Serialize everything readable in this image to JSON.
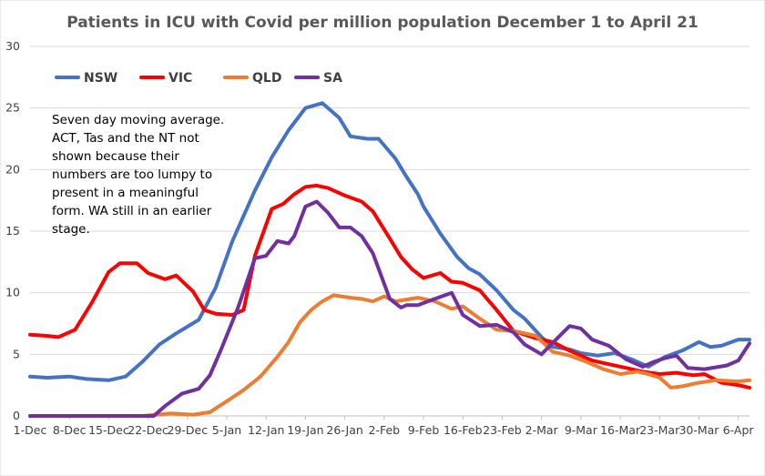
{
  "chart_data": {
    "type": "line",
    "title": "Patients in ICU with Covid per million population December 1  to April 21",
    "xlabel": "",
    "ylabel": "",
    "ylim": [
      0,
      30
    ],
    "yticks": [
      "0",
      "5",
      "10",
      "15",
      "20",
      "25",
      "30"
    ],
    "x_tick_labels": [
      "1-Dec",
      "8-Dec",
      "15-Dec",
      "22-Dec",
      "29-Dec",
      "5-Jan",
      "12-Jan",
      "19-Jan",
      "26-Jan",
      "2-Feb",
      "9-Feb",
      "16-Feb",
      "23-Feb",
      "2-Mar",
      "9-Mar",
      "16-Mar",
      "23-Mar",
      "30-Mar",
      "6-Apr"
    ],
    "x_unit": "days from 1-Dec",
    "x_range": [
      0,
      128
    ],
    "grid": "horizontal",
    "legend_position": "top-left",
    "annotation": "Seven day moving average. ACT, Tas and the NT not shown because their numbers are too lumpy to present in a meaningful form. WA still in an earlier stage.",
    "series": [
      {
        "name": "NSW",
        "color": "#4472C4",
        "x": [
          0,
          3,
          7,
          10,
          14,
          17,
          20,
          23,
          26,
          30,
          33,
          36,
          40,
          43,
          46,
          49,
          52,
          55,
          57,
          60,
          62,
          65,
          67,
          69,
          70,
          73,
          76,
          78,
          80,
          83,
          86,
          88,
          91,
          93,
          96,
          98,
          101,
          104,
          107,
          110,
          113,
          116,
          119,
          121,
          123,
          126,
          128
        ],
        "y": [
          3.2,
          3.1,
          3.2,
          3.0,
          2.9,
          3.2,
          4.4,
          5.8,
          6.7,
          7.8,
          10.4,
          14.2,
          18.3,
          21.0,
          23.2,
          25.0,
          25.4,
          24.2,
          22.7,
          22.5,
          22.5,
          20.9,
          19.4,
          18.0,
          17.0,
          14.8,
          12.9,
          12.0,
          11.5,
          10.2,
          8.6,
          7.9,
          6.4,
          5.6,
          5.4,
          5.1,
          4.9,
          5.1,
          4.6,
          4.0,
          4.8,
          5.3,
          6.0,
          5.6,
          5.7,
          6.2,
          6.2
        ]
      },
      {
        "name": "VIC",
        "color": "#FF0000",
        "x": [
          0,
          3,
          5,
          8,
          11,
          14,
          16,
          19,
          21,
          24,
          26,
          29,
          31,
          33,
          36,
          38,
          40,
          43,
          45,
          47,
          49,
          51,
          53,
          56,
          59,
          61,
          64,
          66,
          68,
          70,
          73,
          75,
          77,
          80,
          83,
          86,
          90,
          93,
          96,
          100,
          103,
          106,
          109,
          112,
          115,
          118,
          120,
          123,
          126,
          128
        ],
        "y": [
          6.6,
          6.5,
          6.4,
          7.0,
          9.2,
          11.7,
          12.4,
          12.4,
          11.6,
          11.1,
          11.4,
          10.1,
          8.6,
          8.3,
          8.2,
          8.6,
          13.0,
          16.8,
          17.2,
          18.0,
          18.6,
          18.7,
          18.5,
          17.9,
          17.4,
          16.6,
          14.4,
          12.9,
          11.9,
          11.2,
          11.6,
          10.9,
          10.8,
          10.2,
          8.6,
          6.9,
          6.3,
          6.0,
          5.3,
          4.5,
          4.2,
          3.9,
          3.6,
          3.4,
          3.5,
          3.3,
          3.4,
          2.7,
          2.5,
          2.3
        ]
      },
      {
        "name": "QLD",
        "color": "#ED7D31",
        "x": [
          0,
          20,
          25,
          29,
          32,
          35,
          38,
          41,
          44,
          46,
          48,
          50,
          52,
          54,
          57,
          59,
          61,
          63,
          65,
          69,
          72,
          75,
          77,
          80,
          83,
          86,
          90,
          93,
          96,
          99,
          102,
          105,
          108,
          110,
          112,
          114,
          116,
          119,
          122,
          126,
          128
        ],
        "y": [
          0,
          0,
          0.2,
          0.1,
          0.3,
          1.2,
          2.1,
          3.2,
          4.8,
          6.0,
          7.6,
          8.6,
          9.3,
          9.8,
          9.6,
          9.5,
          9.3,
          9.7,
          9.3,
          9.6,
          9.3,
          8.7,
          8.9,
          7.9,
          7.0,
          6.9,
          6.5,
          5.2,
          4.9,
          4.4,
          3.8,
          3.4,
          3.6,
          3.4,
          3.1,
          2.3,
          2.4,
          2.7,
          2.9,
          2.8,
          2.9
        ]
      },
      {
        "name": "SA",
        "color": "#7030A0",
        "x": [
          0,
          22,
          24,
          27,
          30,
          32,
          34,
          37,
          40,
          42,
          44,
          46,
          47,
          49,
          51,
          53,
          55,
          57,
          59,
          61,
          64,
          66,
          67,
          69,
          72,
          75,
          77,
          80,
          83,
          86,
          88,
          91,
          94,
          96,
          98,
          100,
          103,
          106,
          109,
          111,
          113,
          115,
          117,
          120,
          124,
          126,
          128
        ],
        "y": [
          0,
          0,
          0.8,
          1.8,
          2.2,
          3.3,
          5.4,
          8.8,
          12.8,
          13.0,
          14.2,
          14.0,
          14.6,
          17.0,
          17.4,
          16.5,
          15.3,
          15.3,
          14.6,
          13.2,
          9.5,
          8.8,
          9.0,
          9.0,
          9.5,
          10.0,
          8.2,
          7.3,
          7.4,
          6.8,
          5.8,
          5.0,
          6.4,
          7.3,
          7.1,
          6.2,
          5.7,
          4.6,
          4.0,
          4.4,
          4.7,
          4.9,
          3.9,
          3.8,
          4.1,
          4.5,
          5.9
        ]
      }
    ]
  }
}
